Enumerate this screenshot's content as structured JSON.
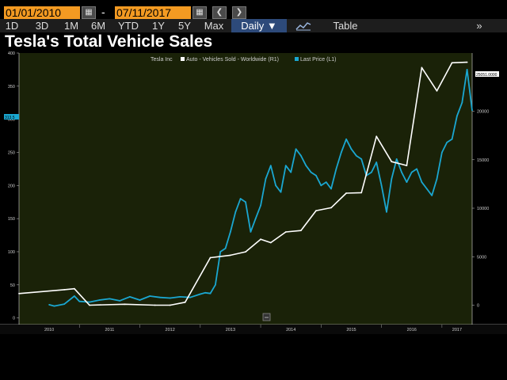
{
  "toolbar": {
    "start_date": "01/01/2010",
    "separator": "-",
    "end_date": "07/11/2017",
    "prev_icon": "chevron-left-icon",
    "next_icon": "chevron-right-icon",
    "calendar_icon": "calendar-icon",
    "periods": [
      "1D",
      "3D",
      "1M",
      "6M",
      "YTD",
      "1Y",
      "5Y",
      "Max"
    ],
    "frequency": "Daily",
    "view_chart_icon": "line-chart-icon",
    "table_label": "Table",
    "more_icon": "double-chevron-right-icon"
  },
  "colors": {
    "date_box": "#f39a22",
    "plot_bg": "#1a2208",
    "sales_line": "#ffffff",
    "price_line": "#1aa7d1",
    "selected_tab": "#2d4a7a"
  },
  "chart_data": {
    "type": "line",
    "title": "Tesla's Total Vehicle Sales",
    "legend": {
      "company": "Tesla Inc",
      "placement": "top-center",
      "entries": [
        "Auto - Vehicles Sold - Worldwide  (R1)",
        "Last Price  (L1)"
      ]
    },
    "x_tick_labels": [
      "2010",
      "2011",
      "2012",
      "2013",
      "2014",
      "2015",
      "2016",
      "2017"
    ],
    "x_range": [
      "2010-01",
      "2017-07"
    ],
    "left_axis": {
      "ticks": [
        0,
        50,
        100,
        150,
        200,
        250,
        300,
        350,
        400
      ],
      "range": [
        -10,
        400
      ]
    },
    "right_axis": {
      "ticks": [
        0,
        5000,
        10000,
        15000,
        20000
      ],
      "range": [
        -2000,
        26000
      ]
    },
    "last_price_tag": "313.5",
    "sales_last_tag": "25051.0000",
    "grid": false,
    "series": [
      {
        "name": "Auto - Vehicles Sold - Worldwide",
        "axis": "right",
        "x": [
          "2010-01",
          "2010-10",
          "2010-12",
          "2011-03",
          "2011-10",
          "2012-04",
          "2012-07",
          "2012-10",
          "2013-03",
          "2013-07",
          "2013-10",
          "2014-01",
          "2014-03",
          "2014-06",
          "2014-09",
          "2014-12",
          "2015-03",
          "2015-06",
          "2015-09",
          "2015-12",
          "2016-03",
          "2016-06",
          "2016-09",
          "2016-12",
          "2017-03",
          "2017-06"
        ],
        "values": [
          1200,
          1600,
          1700,
          0,
          100,
          0,
          0,
          300,
          4900,
          5150,
          5500,
          6800,
          6450,
          7550,
          7700,
          9750,
          10050,
          11550,
          11600,
          17400,
          14800,
          14400,
          24500,
          22100,
          25000,
          25051
        ]
      },
      {
        "name": "Last Price",
        "axis": "left",
        "x": [
          "2010-07",
          "2010-08",
          "2010-10",
          "2010-12",
          "2011-01",
          "2011-03",
          "2011-05",
          "2011-07",
          "2011-09",
          "2011-11",
          "2012-01",
          "2012-03",
          "2012-05",
          "2012-07",
          "2012-09",
          "2012-11",
          "2013-01",
          "2013-02",
          "2013-03",
          "2013-04",
          "2013-05",
          "2013-06",
          "2013-07",
          "2013-08",
          "2013-09",
          "2013-10",
          "2013-11",
          "2013-12",
          "2014-01",
          "2014-02",
          "2014-03",
          "2014-04",
          "2014-05",
          "2014-06",
          "2014-07",
          "2014-08",
          "2014-09",
          "2014-10",
          "2014-11",
          "2014-12",
          "2015-01",
          "2015-02",
          "2015-03",
          "2015-04",
          "2015-05",
          "2015-06",
          "2015-07",
          "2015-08",
          "2015-09",
          "2015-10",
          "2015-11",
          "2015-12",
          "2016-01",
          "2016-02",
          "2016-03",
          "2016-04",
          "2016-05",
          "2016-06",
          "2016-07",
          "2016-08",
          "2016-09",
          "2016-10",
          "2016-11",
          "2016-12",
          "2017-01",
          "2017-02",
          "2017-03",
          "2017-04",
          "2017-05",
          "2017-06",
          "2017-07"
        ],
        "values": [
          20,
          18,
          21,
          33,
          25,
          24,
          27,
          29,
          26,
          32,
          27,
          33,
          31,
          30,
          32,
          31,
          36,
          38,
          37,
          50,
          100,
          105,
          130,
          160,
          180,
          175,
          130,
          150,
          170,
          210,
          230,
          200,
          190,
          230,
          220,
          255,
          245,
          230,
          220,
          215,
          200,
          205,
          195,
          225,
          250,
          270,
          255,
          245,
          240,
          215,
          220,
          235,
          200,
          160,
          210,
          240,
          220,
          205,
          220,
          225,
          205,
          195,
          185,
          210,
          250,
          265,
          270,
          305,
          325,
          375,
          313.5
        ]
      }
    ]
  }
}
